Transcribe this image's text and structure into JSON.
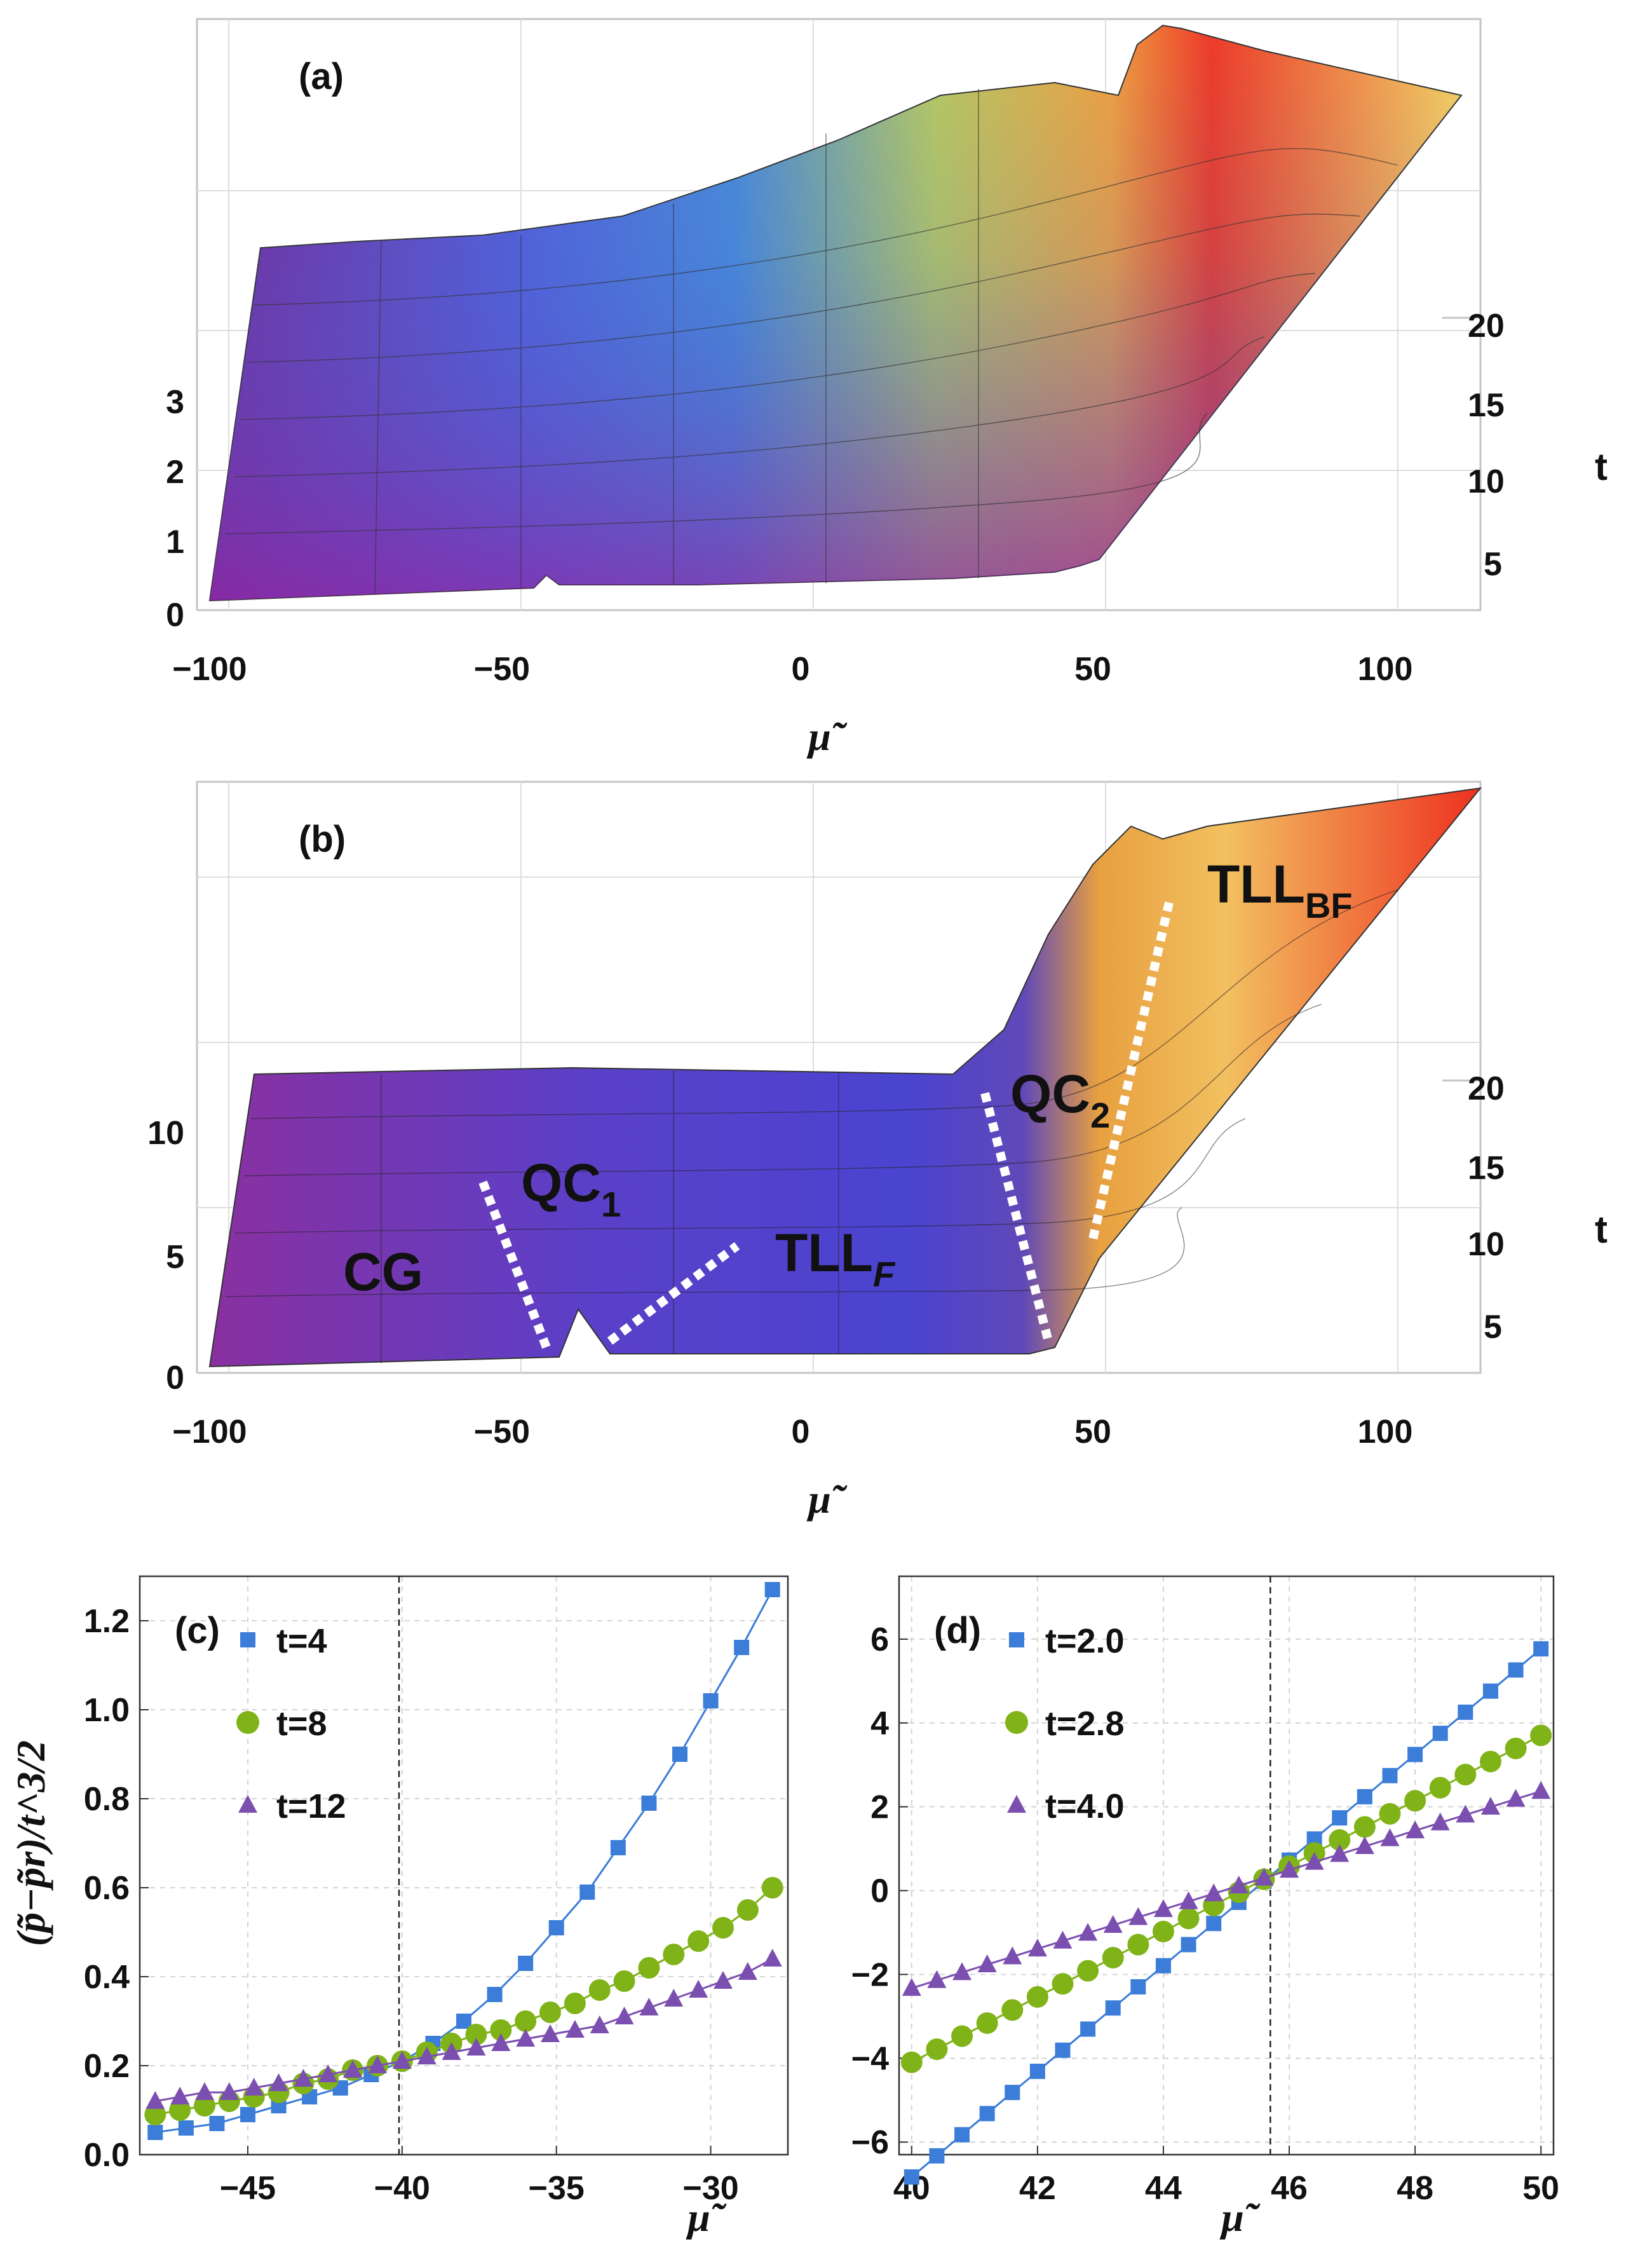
{
  "colors": {
    "t4": "#3b7dd8",
    "t8": "#7fb317",
    "t12": "#7b4fb0"
  },
  "chart_data": [
    {
      "id": "a",
      "type": "surface",
      "panel_label": "(a)",
      "xlabel": "μ̃",
      "ylabel": "t",
      "x_ticks": [
        "−100",
        "−50",
        "0",
        "50",
        "100"
      ],
      "y_ticks": [
        "5",
        "10",
        "15",
        "20"
      ],
      "z_ticks": [
        "0",
        "1",
        "2",
        "3"
      ],
      "xlim": [
        -100,
        115
      ],
      "ylim": [
        2,
        20
      ],
      "zlim": [
        0,
        3.8
      ]
    },
    {
      "id": "b",
      "type": "surface",
      "panel_label": "(b)",
      "xlabel": "μ̃",
      "ylabel": "t",
      "x_ticks": [
        "−100",
        "−50",
        "0",
        "50",
        "100"
      ],
      "y_ticks": [
        "5",
        "10",
        "15",
        "20"
      ],
      "z_ticks": [
        "0",
        "5",
        "10"
      ],
      "xlim": [
        -100,
        115
      ],
      "ylim": [
        2,
        20
      ],
      "zlim": [
        0,
        12
      ],
      "regions": {
        "cg": "CG",
        "qc1": "QC",
        "qc1_sub": "1",
        "tllf": "TLL",
        "tllf_sub": "F",
        "qc2": "QC",
        "qc2_sub": "2",
        "tllbf": "TLL",
        "tllbf_sub": "BF"
      }
    },
    {
      "id": "c",
      "type": "scatter-line",
      "panel_label": "(c)",
      "xlabel": "μ̃",
      "ylabel": "(p̃−p̃r)/t^3/2",
      "xlim": [
        -48.5,
        -27.5
      ],
      "ylim": [
        0.0,
        1.3
      ],
      "x_ticks": [
        -45,
        -40,
        -35,
        -30
      ],
      "x_tick_labels": [
        "−45",
        "−40",
        "−35",
        "−30"
      ],
      "y_ticks": [
        0.0,
        0.2,
        0.4,
        0.6,
        0.8,
        1.0,
        1.2
      ],
      "y_tick_labels": [
        "0.0",
        "0.2",
        "0.4",
        "0.6",
        "0.8",
        "1.0",
        "1.2"
      ],
      "critical_x": -40.1,
      "series": [
        {
          "name": "t=4",
          "marker": "square",
          "x_start": -48,
          "x_end": -28,
          "n": 21,
          "values": [
            0.05,
            0.06,
            0.07,
            0.09,
            0.11,
            0.13,
            0.15,
            0.18,
            0.21,
            0.25,
            0.3,
            0.36,
            0.43,
            0.51,
            0.59,
            0.69,
            0.79,
            0.9,
            1.02,
            1.14,
            1.27
          ]
        },
        {
          "name": "t=8",
          "marker": "circle",
          "x_start": -48,
          "x_end": -28,
          "n": 26,
          "values": [
            0.09,
            0.1,
            0.11,
            0.12,
            0.13,
            0.14,
            0.16,
            0.17,
            0.19,
            0.2,
            0.21,
            0.23,
            0.25,
            0.27,
            0.28,
            0.3,
            0.32,
            0.34,
            0.37,
            0.39,
            0.42,
            0.45,
            0.48,
            0.51,
            0.55,
            0.6
          ]
        },
        {
          "name": "t=12",
          "marker": "triangle",
          "x_start": -48,
          "x_end": -28,
          "n": 26,
          "values": [
            0.12,
            0.13,
            0.14,
            0.14,
            0.15,
            0.16,
            0.17,
            0.18,
            0.19,
            0.2,
            0.21,
            0.22,
            0.23,
            0.24,
            0.25,
            0.26,
            0.27,
            0.28,
            0.29,
            0.31,
            0.33,
            0.35,
            0.37,
            0.39,
            0.41,
            0.44
          ]
        }
      ]
    },
    {
      "id": "d",
      "type": "scatter-line",
      "panel_label": "(d)",
      "xlabel": "μ̃",
      "ylabel": "",
      "xlim": [
        39.8,
        50.2
      ],
      "ylim": [
        -6.3,
        7.5
      ],
      "x_ticks": [
        40,
        42,
        44,
        46,
        48,
        50
      ],
      "x_tick_labels": [
        "40",
        "42",
        "44",
        "46",
        "48",
        "50"
      ],
      "y_ticks": [
        -6,
        -4,
        -2,
        0,
        2,
        4,
        6
      ],
      "y_tick_labels": [
        "−6",
        "−4",
        "−2",
        "0",
        "2",
        "4",
        "6"
      ],
      "critical_x": 45.7,
      "series": [
        {
          "name": "t=2.0",
          "marker": "square",
          "x_start": 40,
          "x_end": 50,
          "n": 26,
          "slope": 1.26,
          "intercept": 0.35
        },
        {
          "name": "t=2.8",
          "marker": "circle",
          "x_start": 40,
          "x_end": 50,
          "n": 26,
          "slope": 0.78,
          "intercept": 0.35
        },
        {
          "name": "t=4.0",
          "marker": "triangle",
          "x_start": 40,
          "x_end": 50,
          "n": 26,
          "slope": 0.47,
          "intercept": 0.35
        }
      ]
    }
  ]
}
